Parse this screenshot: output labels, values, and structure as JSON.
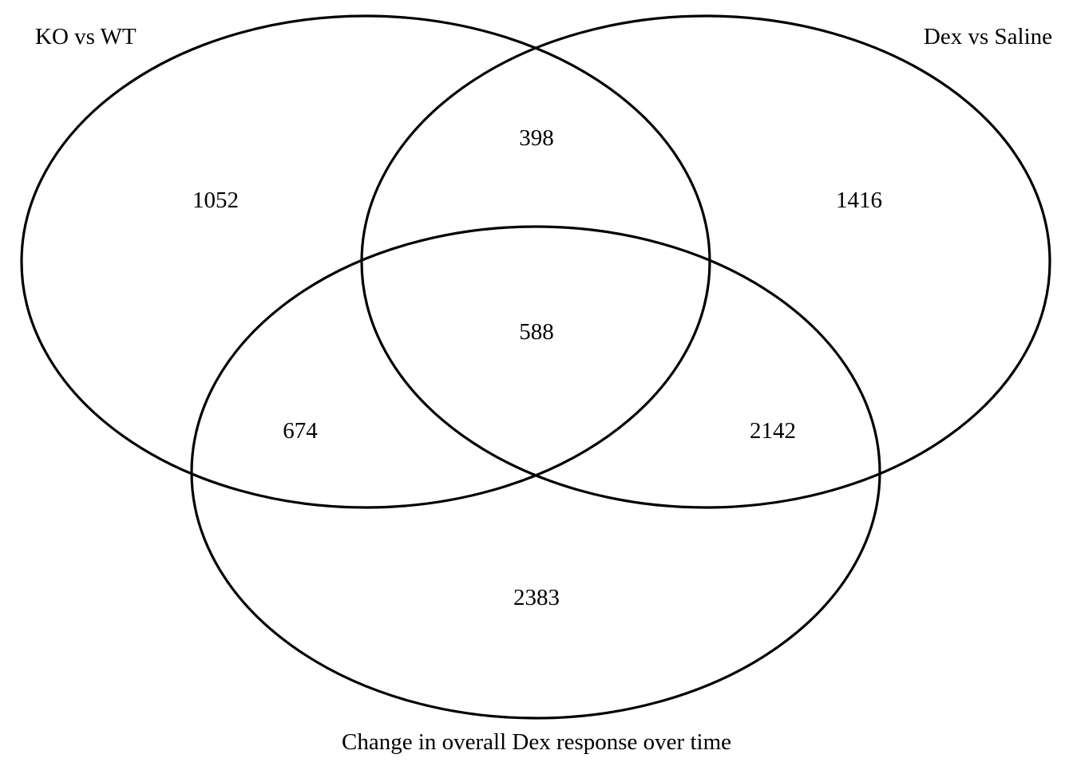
{
  "sets": [
    {
      "id": "ko-vs-wt",
      "label": "KO vs WT"
    },
    {
      "id": "dex-vs-saline",
      "label": "Dex vs Saline"
    },
    {
      "id": "dex-response-over-time",
      "label": "Change in overall Dex response over time"
    }
  ],
  "regions": {
    "ko_only": "1052",
    "dex_only": "1416",
    "time_only": "2383",
    "ko_and_dex": "398",
    "ko_and_time": "674",
    "dex_and_time": "2142",
    "all_three": "588"
  },
  "colors": {
    "stroke": "#000000",
    "background": "#ffffff",
    "text": "#000000"
  }
}
